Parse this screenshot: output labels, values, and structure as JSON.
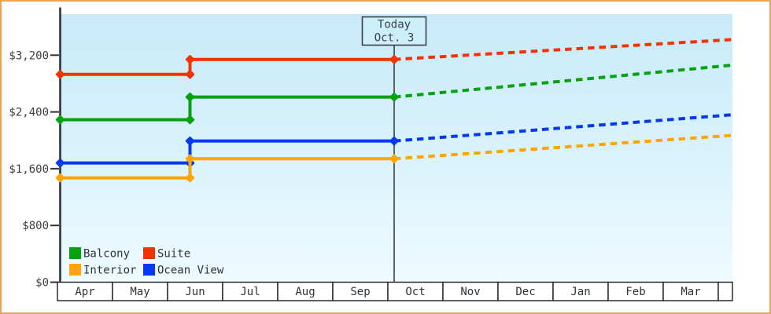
{
  "window": {
    "border_color": "#eaa455",
    "background_color": "#ffffff"
  },
  "chart_data": {
    "type": "line",
    "title": "",
    "description": "Stepped cabin price history with dashed projected prices after today",
    "x_axis": {
      "categories": [
        "Apr",
        "May",
        "Jun",
        "Jul",
        "Aug",
        "Sep",
        "Oct",
        "Nov",
        "Dec",
        "Jan",
        "Feb",
        "Mar"
      ]
    },
    "y_axis": {
      "ticks": [
        {
          "value": 0,
          "label": "$0"
        },
        {
          "value": 800,
          "label": "$800"
        },
        {
          "value": 1600,
          "label": "$1,600"
        },
        {
          "value": 2400,
          "label": "$2,400"
        },
        {
          "value": 3200,
          "label": "$3,200"
        }
      ],
      "ylim": [
        0,
        3780
      ]
    },
    "annotation": {
      "line1": "Today",
      "line2": "Oct. 3"
    },
    "price_increase_month": "Jun",
    "series": [
      {
        "name": "Balcony",
        "color": "#04a20c",
        "initial_price": 2290,
        "price_after_june_increase": 2610,
        "projected_price_march": 3060
      },
      {
        "name": "Suite",
        "color": "#f23300",
        "initial_price": 2930,
        "price_after_june_increase": 3140,
        "projected_price_march": 3420
      },
      {
        "name": "Ocean View",
        "color": "#0439ef",
        "initial_price": 1680,
        "price_after_june_increase": 1990,
        "projected_price_march": 2360
      },
      {
        "name": "Interior",
        "color": "#ffa502",
        "initial_price": 1470,
        "price_after_june_increase": 1740,
        "projected_price_march": 2070
      }
    ],
    "legend": {
      "position": "bottom-left",
      "entries": [
        "Balcony",
        "Suite",
        "Interior",
        "Ocean View"
      ]
    },
    "style_note": "solid line = actual price to date, dashed line = projection"
  }
}
